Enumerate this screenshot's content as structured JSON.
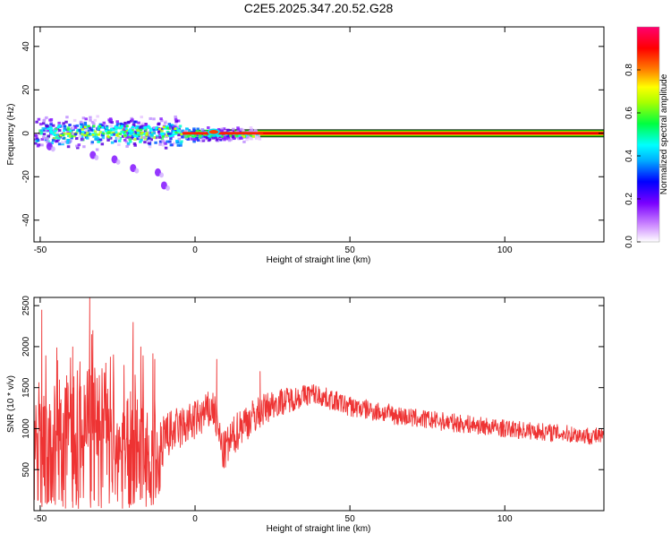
{
  "title": "C2E5.2025.347.20.52.G28",
  "chart_data": [
    {
      "type": "heatmap",
      "xlabel": "Height of straight line (km)",
      "ylabel": "Frequency (Hz)",
      "xlim": [
        -52,
        132
      ],
      "ylim": [
        -50,
        49
      ],
      "xticks": [
        -50,
        0,
        50,
        100
      ],
      "yticks": [
        -40,
        -20,
        0,
        20,
        40
      ],
      "colorbar": {
        "label": "Normalized spectral amplitude",
        "ticks": [
          0.0,
          0.2,
          0.4,
          0.6,
          0.8
        ],
        "range": [
          0,
          1
        ],
        "colormap": [
          "#ffffff",
          "#9400ff",
          "#0000ff",
          "#00ffff",
          "#00ff00",
          "#ffff00",
          "#ff8000",
          "#ff0000",
          "#ff0080"
        ]
      },
      "ridge": {
        "description_points": [
          {
            "x": -52,
            "y": 0
          },
          {
            "x": 0,
            "y": 0
          },
          {
            "x": 132,
            "y": 0
          }
        ],
        "noise_extent": {
          "x_start": -52,
          "x_end": 22,
          "y_min": -10,
          "y_max": 8
        },
        "stray_blobs": [
          {
            "x": -33,
            "y": -10
          },
          {
            "x": -26,
            "y": -12
          },
          {
            "x": -20,
            "y": -16
          },
          {
            "x": -12,
            "y": -18
          },
          {
            "x": -10,
            "y": -24
          },
          {
            "x": -47,
            "y": -6
          }
        ]
      }
    },
    {
      "type": "line",
      "xlabel": "Height of straight line (km)",
      "ylabel": "SNR (10 * v/v)",
      "xlim": [
        -52,
        132
      ],
      "ylim": [
        0,
        2600
      ],
      "xticks": [
        -50,
        0,
        50,
        100
      ],
      "yticks": [
        500,
        1000,
        1500,
        2000,
        2500
      ],
      "series_color": "#ee3333",
      "envelope": [
        {
          "x": -52,
          "mean": 700,
          "spread": 650
        },
        {
          "x": -40,
          "mean": 900,
          "spread": 800
        },
        {
          "x": -30,
          "mean": 950,
          "spread": 850
        },
        {
          "x": -20,
          "mean": 800,
          "spread": 700
        },
        {
          "x": -12,
          "mean": 600,
          "spread": 550
        },
        {
          "x": -10,
          "mean": 900,
          "spread": 300
        },
        {
          "x": 0,
          "mean": 1100,
          "spread": 250
        },
        {
          "x": 6,
          "mean": 1250,
          "spread": 250
        },
        {
          "x": 9,
          "mean": 700,
          "spread": 250
        },
        {
          "x": 15,
          "mean": 1050,
          "spread": 250
        },
        {
          "x": 25,
          "mean": 1300,
          "spread": 180
        },
        {
          "x": 38,
          "mean": 1430,
          "spread": 130
        },
        {
          "x": 50,
          "mean": 1270,
          "spread": 130
        },
        {
          "x": 70,
          "mean": 1130,
          "spread": 120
        },
        {
          "x": 100,
          "mean": 1000,
          "spread": 110
        },
        {
          "x": 132,
          "mean": 900,
          "spread": 110
        }
      ],
      "spikes": [
        {
          "x": -49.5,
          "y": 2450
        },
        {
          "x": -39.5,
          "y": 2000
        },
        {
          "x": -34,
          "y": 2600
        },
        {
          "x": -33,
          "y": 2200
        },
        {
          "x": -20,
          "y": 2300
        },
        {
          "x": -17.5,
          "y": 2000
        },
        {
          "x": -13,
          "y": 1850
        },
        {
          "x": 7,
          "y": 1850
        },
        {
          "x": 21,
          "y": 1700
        }
      ]
    }
  ]
}
